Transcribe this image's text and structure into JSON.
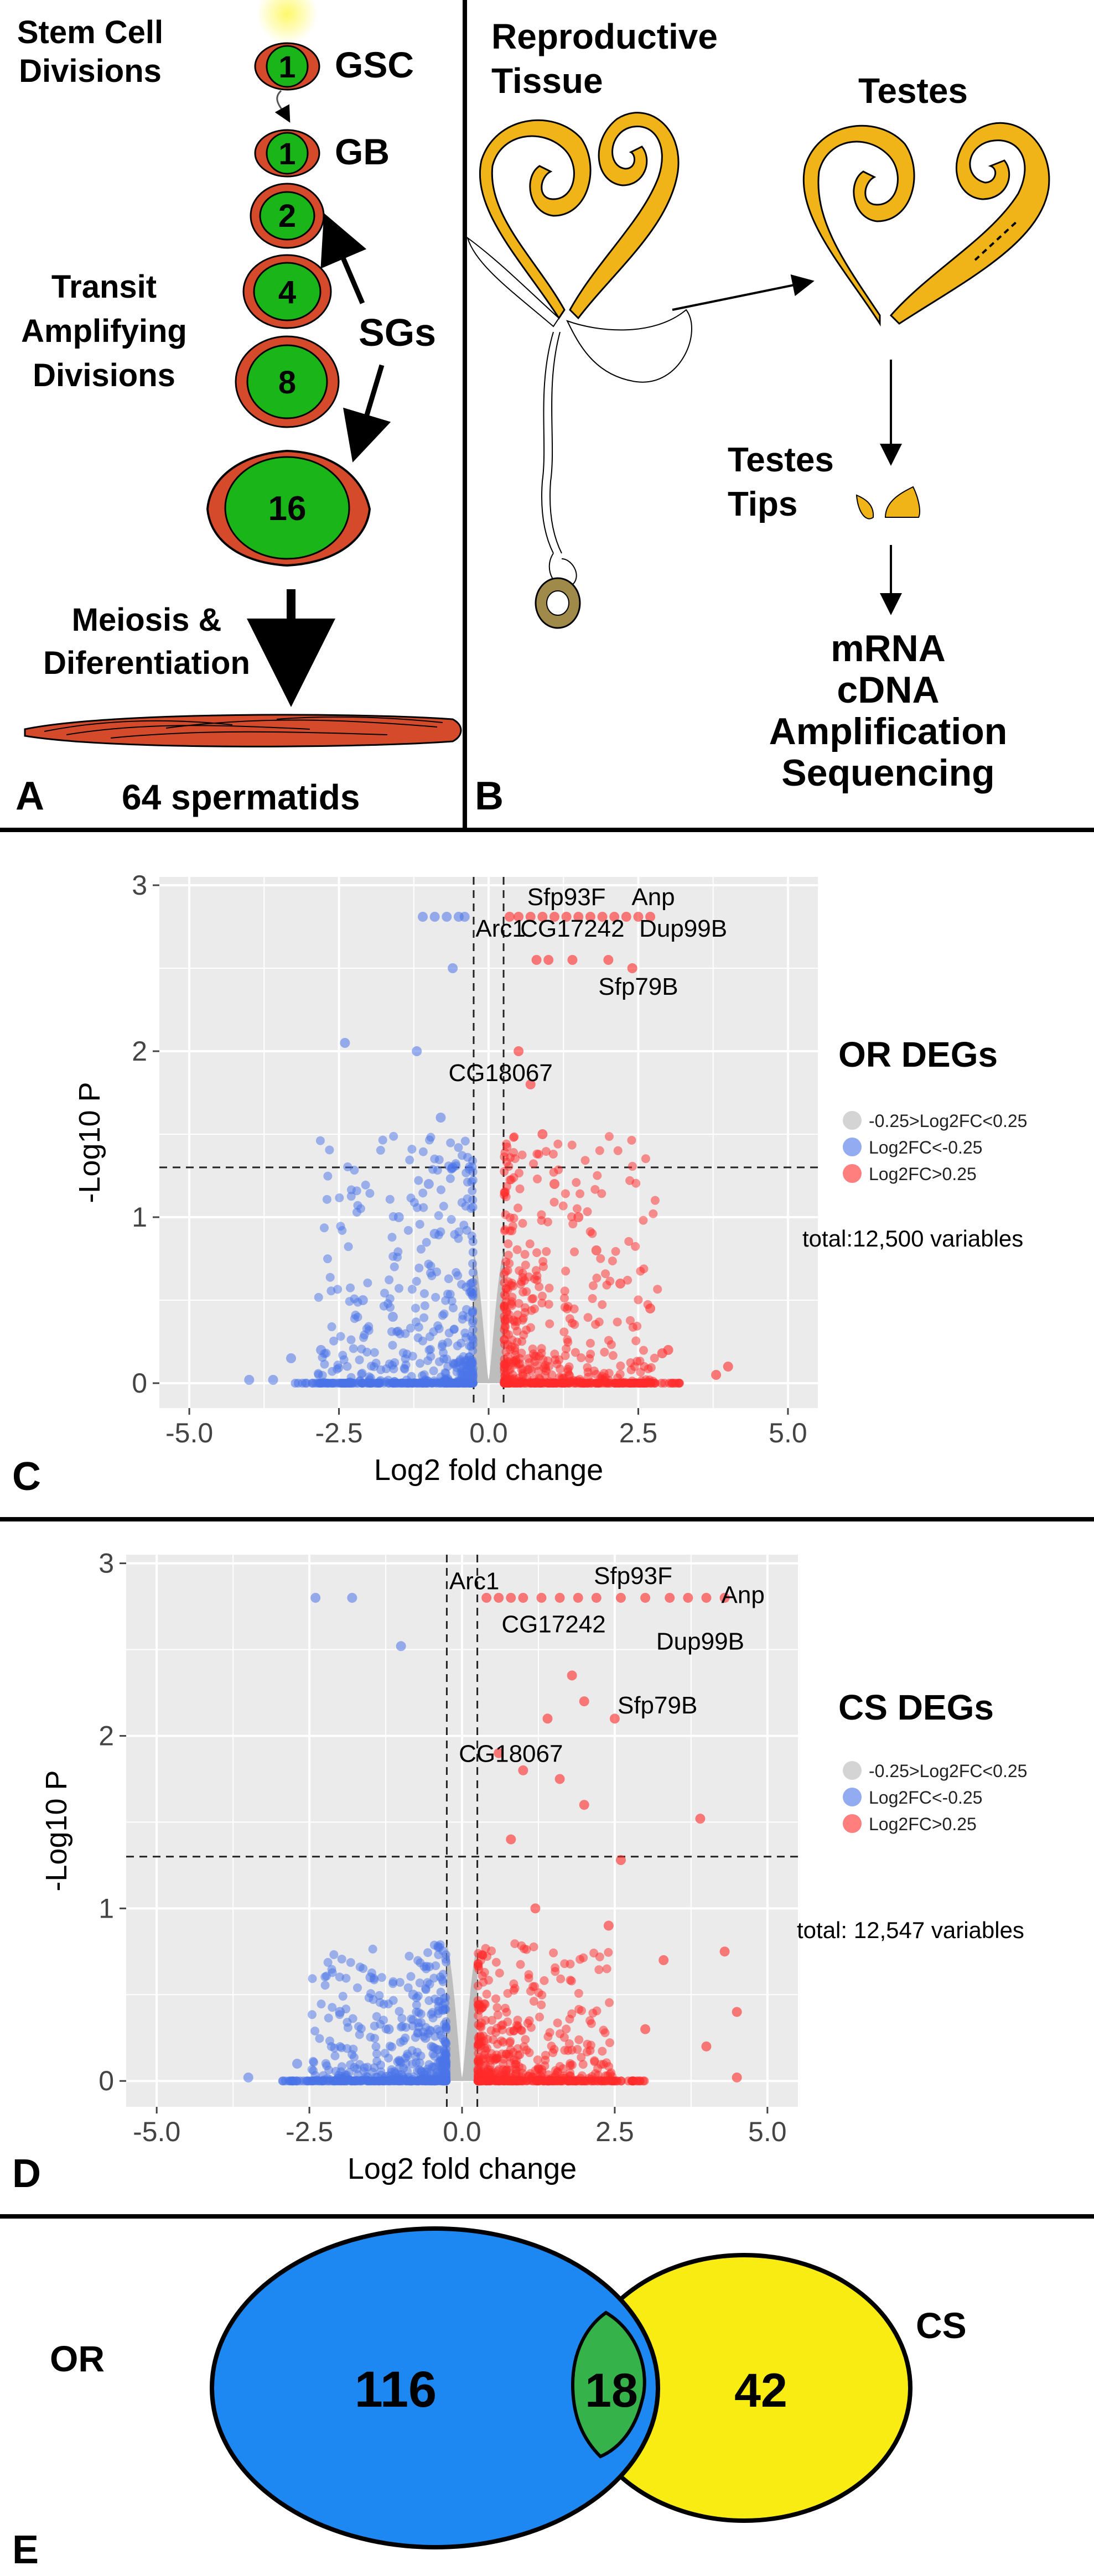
{
  "panel_a": {
    "label": "A",
    "stem_cell_title": [
      "Stem Cell",
      "Divisions"
    ],
    "transit_title": [
      "Transit",
      "Amplifying",
      "Divisions"
    ],
    "meiosis_title": [
      "Meiosis &",
      "Diferentiation"
    ],
    "gsc_label": "GSC",
    "gb_label": "GB",
    "sgs_label": "SGs",
    "cells": [
      "1",
      "1",
      "2",
      "4",
      "8",
      "16"
    ],
    "spermatids_label": "64 spermatids"
  },
  "panel_b": {
    "label": "B",
    "reproductive_title": [
      "Reproductive",
      "Tissue"
    ],
    "testes_title": "Testes",
    "tips_title": [
      "Testes",
      "Tips"
    ],
    "steps": [
      "mRNA",
      "cDNA",
      "Amplification",
      "Sequencing"
    ]
  },
  "colors": {
    "red": "#ff2a2a",
    "blue": "#4a73e8",
    "grey": "#b8b8b8",
    "venn_blue": "#1e88f2",
    "venn_yellow": "#f8ec12",
    "venn_green": "#35b34a",
    "gold": "#f0b418",
    "cell_green": "#19b519",
    "cell_red": "#d44a2a"
  },
  "chart_data": [
    {
      "type": "scatter",
      "panel": "C",
      "title": "OR DEGs",
      "xlabel": "Log2 fold change",
      "ylabel": "-Log10 P",
      "xlim": [
        -5.5,
        5.5
      ],
      "ylim": [
        -0.15,
        3.05
      ],
      "xticks": [
        "-5.0",
        "-2.5",
        "0.0",
        "2.5",
        "5.0"
      ],
      "yticks": [
        "0",
        "1",
        "2",
        "3"
      ],
      "vlines": [
        -0.25,
        0.25
      ],
      "hline": 1.3,
      "legend": [
        "-0.25>Log2FC<0.25",
        "Log2FC<-0.25",
        "Log2FC>0.25"
      ],
      "total": "total:12,500 variables",
      "labels": [
        {
          "text": "Sfp93F",
          "x": 1.3,
          "y": 2.88
        },
        {
          "text": "Anp",
          "x": 2.75,
          "y": 2.88
        },
        {
          "text": "Arc1",
          "x": 0.2,
          "y": 2.69
        },
        {
          "text": "CG17242",
          "x": 1.4,
          "y": 2.69
        },
        {
          "text": "Dup99B",
          "x": 3.25,
          "y": 2.69
        },
        {
          "text": "Sfp79B",
          "x": 2.5,
          "y": 2.34
        },
        {
          "text": "CG18067",
          "x": 0.2,
          "y": 1.82
        }
      ],
      "points": {
        "blue": [
          [
            -0.5,
            2.81
          ],
          [
            -0.7,
            2.81
          ],
          [
            -0.9,
            2.81
          ],
          [
            -1.1,
            2.81
          ],
          [
            -0.4,
            2.81
          ],
          [
            -0.6,
            2.5
          ],
          [
            -1.2,
            2.0
          ],
          [
            -2.4,
            2.05
          ],
          [
            -0.8,
            1.6
          ],
          [
            -0.6,
            1.3
          ],
          [
            -1.0,
            1.2
          ],
          [
            -1.5,
            1.0
          ],
          [
            -0.9,
            0.9
          ],
          [
            -2.1,
            0.5
          ],
          [
            -1.6,
            0.4
          ],
          [
            -2.8,
            0.2
          ],
          [
            -3.3,
            0.15
          ],
          [
            -4.0,
            0.02
          ],
          [
            -3.6,
            0.02
          ]
        ],
        "red": [
          [
            0.35,
            2.81
          ],
          [
            0.5,
            2.81
          ],
          [
            0.7,
            2.81
          ],
          [
            0.9,
            2.81
          ],
          [
            1.1,
            2.81
          ],
          [
            1.3,
            2.81
          ],
          [
            1.5,
            2.81
          ],
          [
            1.7,
            2.81
          ],
          [
            1.9,
            2.81
          ],
          [
            2.1,
            2.81
          ],
          [
            2.3,
            2.81
          ],
          [
            2.5,
            2.81
          ],
          [
            2.7,
            2.81
          ],
          [
            0.8,
            2.55
          ],
          [
            1.0,
            2.55
          ],
          [
            1.4,
            2.55
          ],
          [
            2.0,
            2.55
          ],
          [
            2.4,
            2.5
          ],
          [
            0.5,
            2.0
          ],
          [
            0.7,
            1.8
          ],
          [
            0.9,
            1.5
          ],
          [
            1.1,
            1.2
          ],
          [
            1.5,
            1.0
          ],
          [
            1.8,
            0.8
          ],
          [
            2.2,
            0.6
          ],
          [
            2.7,
            0.45
          ],
          [
            3.0,
            0.2
          ],
          [
            3.8,
            0.05
          ],
          [
            4.0,
            0.1
          ],
          [
            2.9,
            0.18
          ]
        ]
      }
    },
    {
      "type": "scatter",
      "panel": "D",
      "title": "CS DEGs",
      "xlabel": "Log2 fold change",
      "ylabel": "-Log10 P",
      "xlim": [
        -5.5,
        5.5
      ],
      "ylim": [
        -0.15,
        3.05
      ],
      "xticks": [
        "-5.0",
        "-2.5",
        "0.0",
        "2.5",
        "5.0"
      ],
      "yticks": [
        "0",
        "1",
        "2",
        "3"
      ],
      "vlines": [
        -0.25,
        0.25
      ],
      "hline": 1.3,
      "legend": [
        "-0.25>Log2FC<0.25",
        "Log2FC<-0.25",
        "Log2FC>0.25"
      ],
      "total": "total: 12,547 variables",
      "labels": [
        {
          "text": "Arc1",
          "x": 0.2,
          "y": 2.85
        },
        {
          "text": "Sfp93F",
          "x": 2.8,
          "y": 2.88
        },
        {
          "text": "Anp",
          "x": 4.6,
          "y": 2.77
        },
        {
          "text": "CG17242",
          "x": 1.5,
          "y": 2.6
        },
        {
          "text": "Dup99B",
          "x": 3.9,
          "y": 2.5
        },
        {
          "text": "Sfp79B",
          "x": 3.2,
          "y": 2.13
        },
        {
          "text": "CG18067",
          "x": 0.8,
          "y": 1.85
        }
      ],
      "points": {
        "blue": [
          [
            -2.4,
            2.8
          ],
          [
            -1.8,
            2.8
          ],
          [
            -1.0,
            2.52
          ],
          [
            -1.5,
            0.6
          ],
          [
            -2.0,
            0.4
          ],
          [
            -0.8,
            0.5
          ],
          [
            -1.2,
            0.3
          ],
          [
            -0.6,
            0.25
          ],
          [
            -2.7,
            0.1
          ],
          [
            -3.5,
            0.02
          ]
        ],
        "red": [
          [
            0.4,
            2.8
          ],
          [
            0.6,
            2.8
          ],
          [
            0.8,
            2.8
          ],
          [
            1.0,
            2.8
          ],
          [
            1.3,
            2.8
          ],
          [
            1.6,
            2.8
          ],
          [
            1.9,
            2.8
          ],
          [
            2.2,
            2.8
          ],
          [
            2.6,
            2.8
          ],
          [
            3.0,
            2.8
          ],
          [
            3.4,
            2.8
          ],
          [
            3.7,
            2.8
          ],
          [
            4.0,
            2.8
          ],
          [
            4.3,
            2.8
          ],
          [
            1.8,
            2.35
          ],
          [
            2.0,
            2.2
          ],
          [
            1.4,
            2.1
          ],
          [
            2.5,
            2.1
          ],
          [
            0.6,
            1.9
          ],
          [
            1.0,
            1.8
          ],
          [
            1.6,
            1.75
          ],
          [
            2.0,
            1.6
          ],
          [
            3.9,
            1.52
          ],
          [
            2.6,
            1.28
          ],
          [
            0.8,
            1.4
          ],
          [
            1.2,
            1.0
          ],
          [
            2.4,
            0.9
          ],
          [
            3.3,
            0.7
          ],
          [
            4.3,
            0.75
          ],
          [
            4.5,
            0.4
          ],
          [
            4.0,
            0.2
          ],
          [
            3.0,
            0.3
          ],
          [
            4.5,
            0.02
          ]
        ]
      }
    },
    {
      "type": "venn",
      "panel": "E",
      "sets": [
        "OR",
        "CS"
      ],
      "only_left": "116",
      "overlap": "18",
      "only_right": "42"
    }
  ],
  "panel_e": {
    "label": "E"
  },
  "panel_c": {
    "label": "C"
  },
  "panel_d": {
    "label": "D"
  }
}
